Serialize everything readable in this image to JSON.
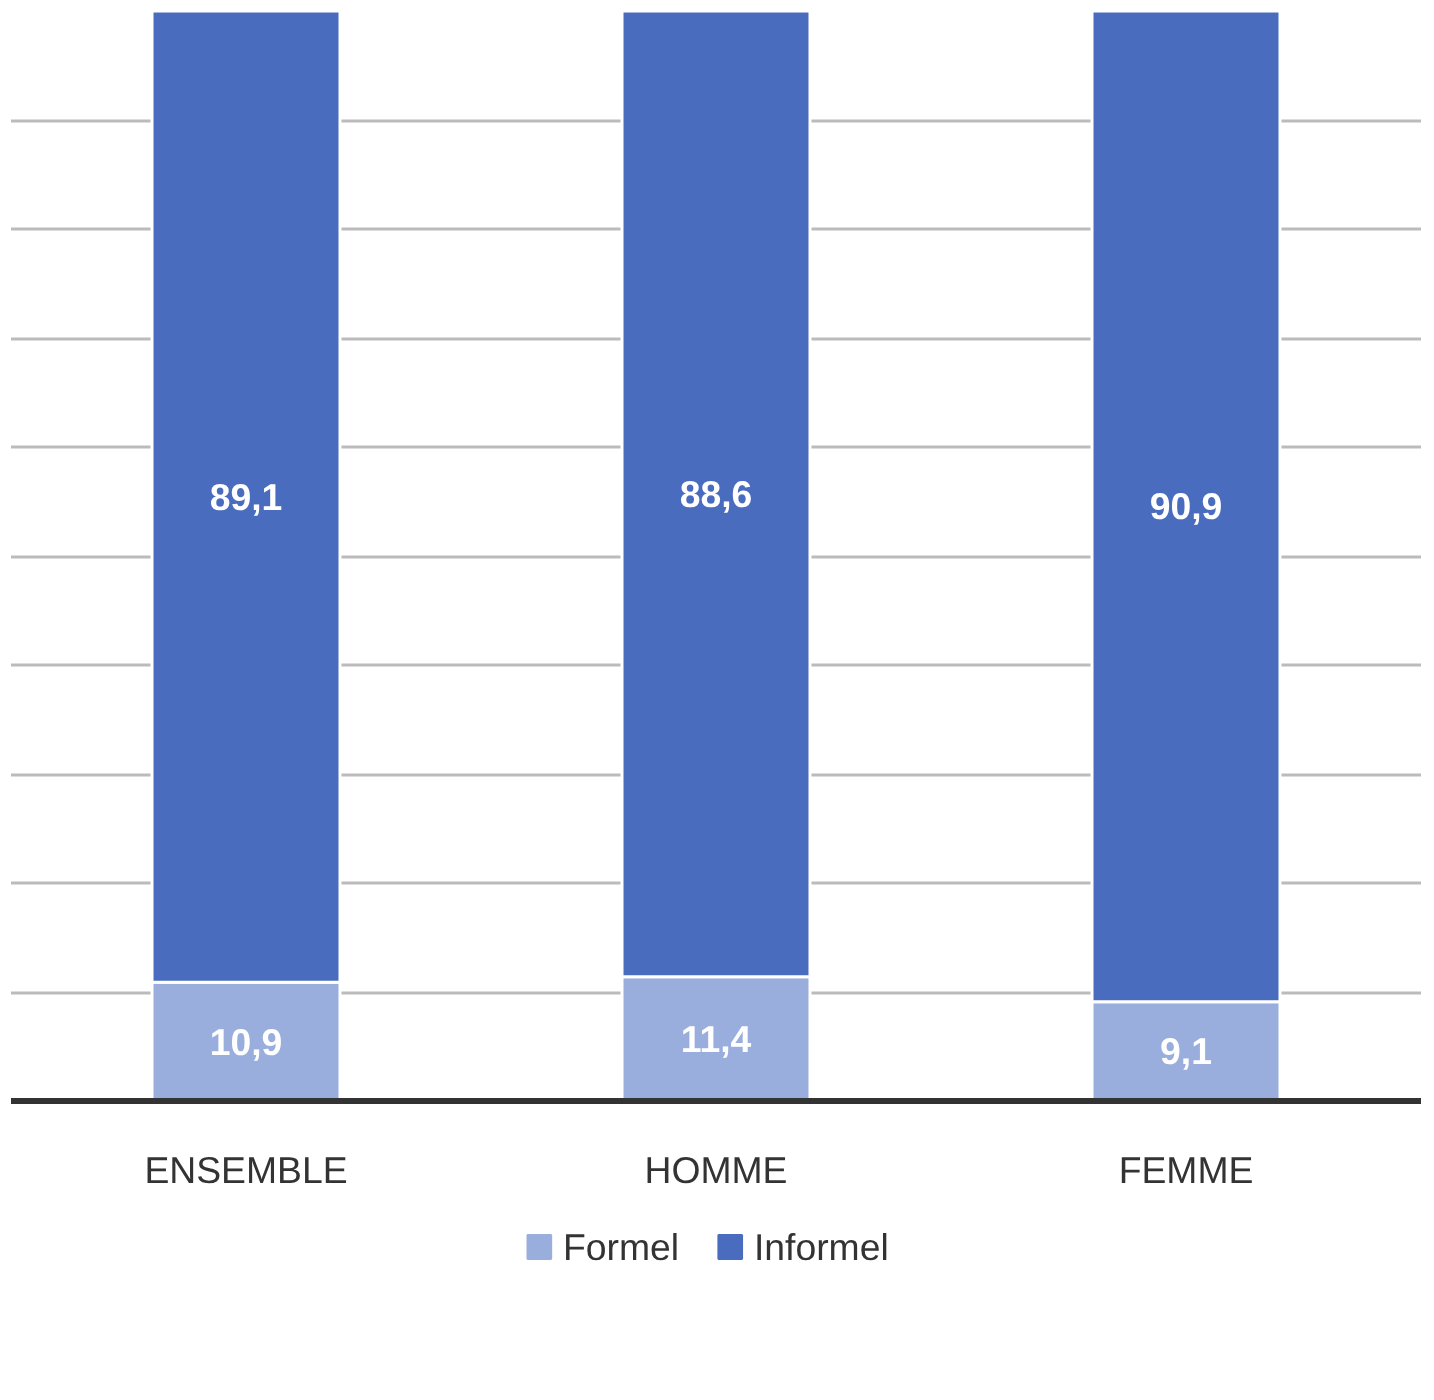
{
  "chart_data": {
    "type": "bar",
    "stacked": true,
    "categories": [
      "ENSEMBLE",
      "HOMME",
      "FEMME"
    ],
    "series": [
      {
        "name": "Formel",
        "color": "#9aaedd",
        "values": [
          10.9,
          11.4,
          9.1
        ],
        "value_labels": [
          "10,9",
          "11,4",
          "9,1"
        ]
      },
      {
        "name": "Informel",
        "color": "#4a6cbf",
        "values": [
          89.1,
          88.6,
          90.9
        ],
        "value_labels": [
          "89,1",
          "88,6",
          "90,9"
        ]
      }
    ],
    "tick_labels": "x",
    "grid": "y",
    "legend": "bottom"
  }
}
